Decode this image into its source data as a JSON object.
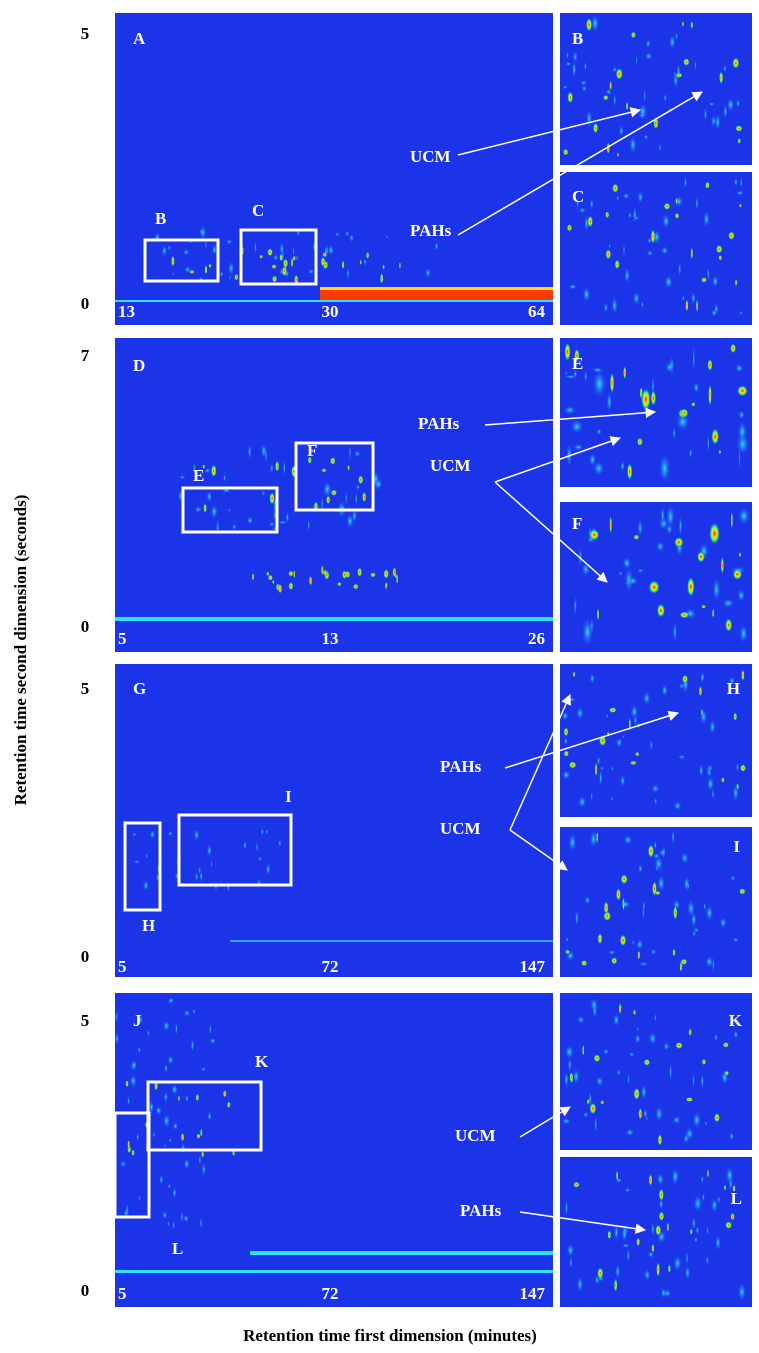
{
  "y_axis_label": "Retention time second dimension (seconds)",
  "x_axis_label": "Retention time first dimension (minutes)",
  "panels": [
    {
      "label": "A",
      "y_ticks": [
        "5",
        "0"
      ],
      "x_ticks": [
        "13",
        "30",
        "64"
      ],
      "boxes": [
        "B",
        "C"
      ],
      "insets": [
        "B",
        "C"
      ],
      "annotations": [
        "UCM",
        "PAHs"
      ]
    },
    {
      "label": "D",
      "y_ticks": [
        "7",
        "0"
      ],
      "x_ticks": [
        "5",
        "13",
        "26"
      ],
      "boxes": [
        "E",
        "F"
      ],
      "insets": [
        "E",
        "F"
      ],
      "annotations": [
        "PAHs",
        "UCM"
      ]
    },
    {
      "label": "G",
      "y_ticks": [
        "5",
        "0"
      ],
      "x_ticks": [
        "5",
        "72",
        "147"
      ],
      "boxes": [
        "H",
        "I"
      ],
      "insets": [
        "H",
        "I"
      ],
      "annotations": [
        "PAHs",
        "UCM"
      ]
    },
    {
      "label": "J",
      "y_ticks": [
        "5",
        "0"
      ],
      "x_ticks": [
        "5",
        "72",
        "147"
      ],
      "boxes": [
        "K",
        "L"
      ],
      "insets": [
        "K",
        "L"
      ],
      "annotations": [
        "UCM",
        "PAHs"
      ]
    }
  ]
}
